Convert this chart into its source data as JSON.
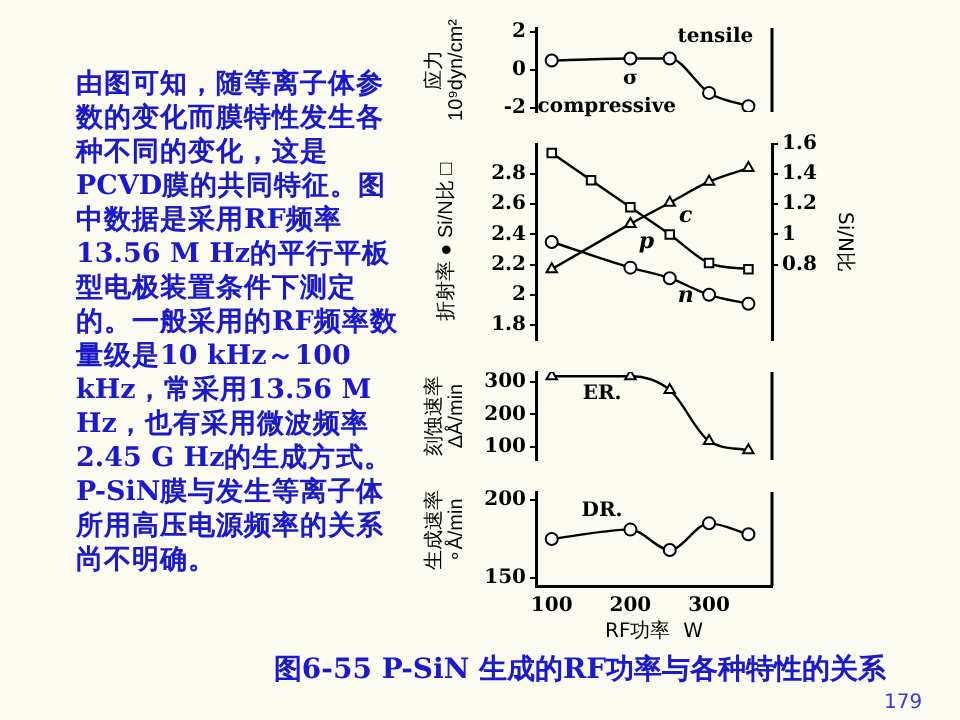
{
  "chart_data": [
    {
      "type": "other",
      "annotations": [
        "由图可知，随等离子体参数的变化而膜特性发生各种不同的变化，这是PCVD膜的共同特征。图中数据是采用RF频率13.56 M Hz的平行平板型电极装置条件下测定的。一般采用的RF频率数量级是10 kHz～100 kHz，常采用13.56 M Hz，也有采用微波频率2.45 G Hz的生成方式。P-SiN膜与发生等离子体所用高压电源频率的关系尚不明确。"
      ]
    },
    {
      "type": "line",
      "ylabel": "应力 10⁹dyn/cm²",
      "xlim": [
        80,
        380
      ],
      "xticks": [
        100,
        200,
        300
      ],
      "ylim": [
        -2.2,
        2.2
      ],
      "yticks": [
        2,
        0,
        -2
      ],
      "tick_labels": "y",
      "grid": false,
      "legend": false,
      "marker": "circle",
      "x": [
        100,
        200,
        250,
        300,
        350
      ],
      "series": [
        {
          "color": "#000000",
          "values": [
            0.5,
            0.6,
            0.6,
            -1.2,
            -1.9
          ]
        }
      ],
      "annotations": [
        "σ",
        "compressive",
        "tensile"
      ]
    },
    {
      "type": "line",
      "ylabel": "折射率 ● Si/N比 □",
      "y2label": "Si/N比",
      "xlim": [
        80,
        380
      ],
      "xticks": [
        100,
        200,
        300
      ],
      "ylim": [
        1.7,
        3.0
      ],
      "yticks": [
        1.8,
        2.0,
        2.2,
        2.4,
        2.6,
        2.8
      ],
      "y2lim": [
        0.3,
        1.6
      ],
      "y2ticks": [
        0.8,
        1.0,
        1.2,
        1.4,
        1.6
      ],
      "tick_labels": "y",
      "grid": false,
      "legend": false,
      "series": [
        {
          "name": "p",
          "color": "#000000",
          "marker": "triangle",
          "x": [
            100,
            200,
            250,
            300,
            350
          ],
          "values": [
            2.17,
            2.47,
            2.61,
            2.75,
            2.84
          ]
        },
        {
          "name": "c",
          "color": "#000000",
          "marker": "square",
          "axis": "y2",
          "x": [
            100,
            150,
            200,
            250,
            300,
            350
          ],
          "values": [
            1.54,
            1.36,
            1.18,
            1.0,
            0.81,
            0.77
          ]
        },
        {
          "name": "n",
          "color": "#000000",
          "marker": "circle",
          "x": [
            100,
            200,
            250,
            300,
            350
          ],
          "values": [
            2.35,
            2.18,
            2.11,
            2.0,
            1.94
          ]
        }
      ]
    },
    {
      "type": "line",
      "ylabel": "刻蚀速率 ΔÅ/min",
      "xlim": [
        80,
        380
      ],
      "xticks": [
        100,
        200,
        300
      ],
      "ylim": [
        60,
        330
      ],
      "yticks": [
        100,
        200,
        300
      ],
      "tick_labels": "y",
      "grid": false,
      "legend": false,
      "marker": "triangle",
      "x": [
        100,
        200,
        250,
        300,
        350
      ],
      "series": [
        {
          "color": "#000000",
          "values": [
            317,
            317,
            275,
            118,
            90
          ]
        }
      ],
      "annotations": [
        "ER."
      ]
    },
    {
      "type": "line",
      "ylabel": "生成速率 ∘Å/min",
      "xlabel": "RF功率  W",
      "xlim": [
        80,
        380
      ],
      "xticks": [
        100,
        200,
        300
      ],
      "ylim": [
        145,
        205
      ],
      "yticks": [
        150,
        200
      ],
      "grid": false,
      "legend": false,
      "marker": "circle",
      "x": [
        100,
        200,
        250,
        300,
        350
      ],
      "series": [
        {
          "color": "#000000",
          "values": [
            175,
            181,
            168,
            185,
            178
          ]
        }
      ],
      "annotations": [
        "DR."
      ]
    },
    {
      "type": "other",
      "title": "图6-55 P-SiN 生成的RF功率与各种特性的关系",
      "annotations": [
        "179"
      ]
    }
  ]
}
